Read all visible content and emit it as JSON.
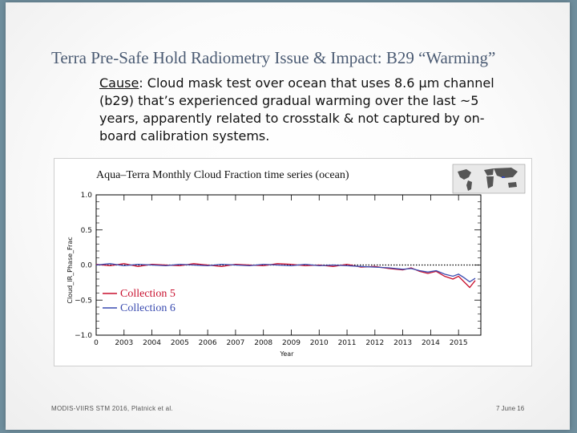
{
  "slide": {
    "title": "Terra Pre-Safe Hold Radiometry Issue & Impact: B29 “Warming”",
    "cause_label": "Cause",
    "cause_text": ": Cloud mask test over ocean that uses 8.6 µm channel (b29) that’s experienced gradual warming over the last ~5 years, apparently related to crosstalk & not captured by on-board calibration systems.",
    "footer_left": "MODIS-VIIRS STM 2016, Platnick et al.",
    "footer_right": "7 June 16"
  },
  "colors": {
    "collection5": "#c8102e",
    "collection6": "#3a4bb0",
    "reference_line": "#000000"
  },
  "map_inset": {
    "icon": "world-map-icon"
  },
  "chart_data": {
    "type": "line",
    "title": "Aqua–Terra Monthly Cloud Fraction time series (ocean)",
    "xlabel": "Year",
    "ylabel": "Cloud_IR_Phase_Frac",
    "x_ticks": [
      "0",
      "2003",
      "2004",
      "2005",
      "2006",
      "2007",
      "2008",
      "2009",
      "2010",
      "2011",
      "2012",
      "2013",
      "2014",
      "2015"
    ],
    "y_ticks": [
      "1.0",
      "0.5",
      "0.0",
      "−0.5",
      "−1.0"
    ],
    "xlim": [
      2002.0,
      2015.8
    ],
    "ylim": [
      -1.0,
      1.0
    ],
    "reference_line_y": 0.0,
    "legend_position": "lower-left",
    "series": [
      {
        "name": "Collection 5",
        "points": [
          [
            2002.0,
            0.01
          ],
          [
            2002.5,
            -0.01
          ],
          [
            2003.0,
            0.02
          ],
          [
            2003.5,
            -0.02
          ],
          [
            2004.0,
            0.01
          ],
          [
            2004.5,
            0.0
          ],
          [
            2005.0,
            -0.01
          ],
          [
            2005.5,
            0.02
          ],
          [
            2006.0,
            0.0
          ],
          [
            2006.5,
            -0.02
          ],
          [
            2007.0,
            0.01
          ],
          [
            2007.5,
            0.0
          ],
          [
            2008.0,
            -0.01
          ],
          [
            2008.5,
            0.02
          ],
          [
            2009.0,
            0.01
          ],
          [
            2009.5,
            -0.01
          ],
          [
            2010.0,
            0.0
          ],
          [
            2010.5,
            -0.02
          ],
          [
            2011.0,
            0.01
          ],
          [
            2011.5,
            -0.03
          ],
          [
            2012.0,
            -0.02
          ],
          [
            2012.5,
            -0.05
          ],
          [
            2013.0,
            -0.07
          ],
          [
            2013.3,
            -0.04
          ],
          [
            2013.6,
            -0.09
          ],
          [
            2013.9,
            -0.12
          ],
          [
            2014.2,
            -0.09
          ],
          [
            2014.5,
            -0.16
          ],
          [
            2014.8,
            -0.2
          ],
          [
            2015.0,
            -0.16
          ],
          [
            2015.2,
            -0.24
          ],
          [
            2015.4,
            -0.32
          ],
          [
            2015.6,
            -0.22
          ]
        ]
      },
      {
        "name": "Collection 6",
        "points": [
          [
            2002.0,
            0.0
          ],
          [
            2002.5,
            0.02
          ],
          [
            2003.0,
            -0.01
          ],
          [
            2003.5,
            0.01
          ],
          [
            2004.0,
            0.0
          ],
          [
            2004.5,
            -0.01
          ],
          [
            2005.0,
            0.01
          ],
          [
            2005.5,
            0.0
          ],
          [
            2006.0,
            -0.01
          ],
          [
            2006.5,
            0.01
          ],
          [
            2007.0,
            0.0
          ],
          [
            2007.5,
            -0.01
          ],
          [
            2008.0,
            0.01
          ],
          [
            2008.5,
            0.0
          ],
          [
            2009.0,
            -0.01
          ],
          [
            2009.5,
            0.01
          ],
          [
            2010.0,
            -0.01
          ],
          [
            2010.5,
            0.0
          ],
          [
            2011.0,
            -0.01
          ],
          [
            2011.5,
            -0.02
          ],
          [
            2012.0,
            -0.03
          ],
          [
            2012.5,
            -0.04
          ],
          [
            2013.0,
            -0.06
          ],
          [
            2013.3,
            -0.05
          ],
          [
            2013.6,
            -0.08
          ],
          [
            2013.9,
            -0.1
          ],
          [
            2014.2,
            -0.08
          ],
          [
            2014.5,
            -0.13
          ],
          [
            2014.8,
            -0.16
          ],
          [
            2015.0,
            -0.13
          ],
          [
            2015.2,
            -0.18
          ],
          [
            2015.4,
            -0.24
          ],
          [
            2015.6,
            -0.19
          ]
        ]
      }
    ]
  }
}
